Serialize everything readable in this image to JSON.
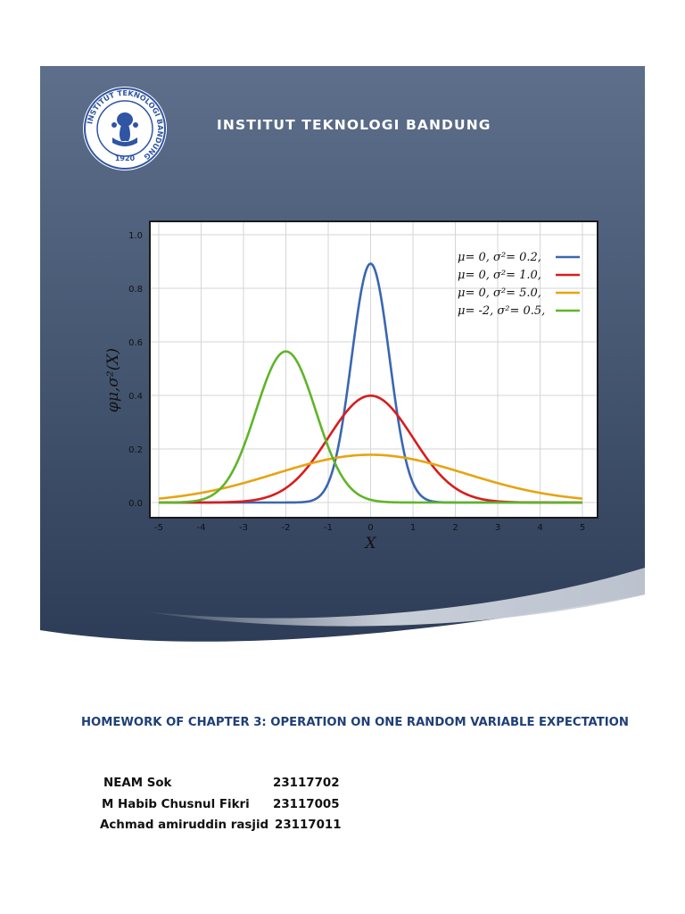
{
  "header": {
    "institution": "INSTITUT TEKNOLOGI BANDUNG",
    "logo": {
      "ring_text": "INSTITUT TEKNOLOGI BANDUNG",
      "year": "1920"
    }
  },
  "chart_data": {
    "type": "line",
    "title": "",
    "xlabel": "X",
    "ylabel": "φμ,σ²(X)",
    "xlim": [
      -5,
      5
    ],
    "ylim": [
      0,
      1.0
    ],
    "x_ticks": [
      "-5",
      "-4",
      "-3",
      "-2",
      "-1",
      "0",
      "1",
      "2",
      "3",
      "4",
      "5"
    ],
    "y_ticks": [
      "0.0",
      "0.2",
      "0.4",
      "0.6",
      "0.8",
      "1.0"
    ],
    "grid": true,
    "legend_position": "top-right",
    "series": [
      {
        "name": "μ= 0,   σ²= 0.2,",
        "mu": 0,
        "var": 0.2,
        "color": "#3a67b0"
      },
      {
        "name": "μ= 0,   σ²= 1.0,",
        "mu": 0,
        "var": 1.0,
        "color": "#d81d1d"
      },
      {
        "name": "μ= 0,   σ²= 5.0,",
        "mu": 0,
        "var": 5.0,
        "color": "#e8a313"
      },
      {
        "name": "μ= -2, σ²= 0.5,",
        "mu": -2,
        "var": 0.5,
        "color": "#5fb527"
      }
    ]
  },
  "assignment": {
    "title": "HOMEWORK OF CHAPTER 3: OPERATION ON ONE RANDOM VARIABLE EXPECTATION",
    "members": [
      {
        "name": "NEAM Sok",
        "id": "23117702"
      },
      {
        "name": "M Habib Chusnul Fikri",
        "id": "23117005"
      },
      {
        "name": "Achmad amiruddin rasjid",
        "id": "23117011"
      }
    ]
  },
  "colors": {
    "banner_top": "#5a6c88",
    "banner_bottom": "#2f3f59",
    "title_blue": "#1f3f77"
  }
}
